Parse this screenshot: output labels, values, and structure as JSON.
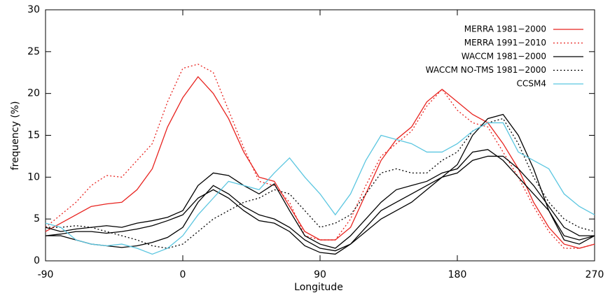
{
  "chart_data": {
    "type": "line",
    "x_label": "Longitude",
    "y_label": "frequency (%)",
    "xlim": [
      -90,
      270
    ],
    "xticks": [
      -90,
      0,
      90,
      180,
      270
    ],
    "ylim": [
      0,
      30
    ],
    "yticks": [
      0,
      5,
      10,
      15,
      20,
      25,
      30
    ],
    "legend": "top-right",
    "x": [
      -90,
      -80,
      -70,
      -60,
      -50,
      -40,
      -30,
      -20,
      -10,
      0,
      10,
      20,
      30,
      40,
      50,
      60,
      70,
      80,
      90,
      100,
      110,
      120,
      130,
      140,
      150,
      160,
      170,
      180,
      190,
      200,
      210,
      220,
      230,
      240,
      250,
      260,
      270
    ],
    "series": [
      {
        "name": "MERRA 1981−2000",
        "color": "#e8231f",
        "dash": "solid",
        "values": [
          3.5,
          4.5,
          5.5,
          6.5,
          6.8,
          7,
          8.5,
          11,
          16,
          19.5,
          22,
          20,
          17,
          13,
          10,
          9.5,
          6.5,
          3.5,
          2.5,
          2.5,
          4,
          8,
          12,
          14.5,
          16,
          19,
          20.5,
          19,
          17.5,
          16.5,
          14,
          11,
          7,
          4,
          2,
          1.5,
          2
        ]
      },
      {
        "name": "MERRA 1991−2010",
        "color": "#e8231f",
        "dash": "dotted",
        "values": [
          4,
          5.5,
          7,
          9,
          10.2,
          10,
          12,
          14,
          19,
          23,
          23.5,
          22.5,
          18,
          13.5,
          9.5,
          9,
          7,
          3,
          2.5,
          2.5,
          5,
          9,
          12.5,
          14,
          15.5,
          18.5,
          20.5,
          18,
          16.5,
          16,
          13,
          10,
          6.5,
          3.5,
          1.5,
          1.5,
          2
        ]
      },
      {
        "name": "WACCM 1981−2000",
        "color": "#000000",
        "dash": "solid",
        "values": [
          [
            4,
            3.5,
            3.8,
            4,
            4.2,
            4,
            4.5,
            4.8,
            5.2,
            6,
            9,
            10.5,
            10.2,
            9,
            8,
            9.2,
            6,
            3,
            2,
            1.5,
            3,
            5,
            7,
            8.5,
            9,
            9.5,
            10.5,
            11,
            13,
            13.3,
            12,
            10,
            8,
            6,
            3,
            2.5,
            3
          ],
          [
            3,
            3,
            2.5,
            2,
            1.8,
            1.6,
            1.8,
            2.2,
            2.8,
            4,
            7,
            9,
            8,
            6.5,
            5.5,
            5,
            4,
            2.5,
            1.5,
            1.2,
            2,
            4,
            6,
            7,
            8,
            9,
            10,
            11.5,
            15,
            17,
            17.5,
            15,
            11,
            6,
            2.5,
            2,
            3
          ],
          [
            3,
            3.2,
            3.5,
            3.5,
            3.3,
            3.5,
            3.8,
            4.2,
            4.8,
            5.5,
            7.5,
            8.5,
            7.5,
            6,
            4.8,
            4.5,
            3.5,
            1.8,
            1,
            0.8,
            2,
            3.5,
            5,
            6,
            7,
            8.5,
            10,
            10.5,
            12,
            12.5,
            12.5,
            11,
            9,
            6.5,
            4,
            3,
            3
          ]
        ]
      },
      {
        "name": "WACCM NO-TMS 1981−2000",
        "color": "#000000",
        "dash": "dotted",
        "values": [
          4,
          4,
          4.2,
          4,
          3.5,
          3,
          2.5,
          1.8,
          1.5,
          2,
          3.5,
          5,
          6,
          7,
          7.5,
          8.5,
          8,
          6,
          4,
          4.5,
          5.5,
          8,
          10.5,
          11,
          10.5,
          10.5,
          12,
          13,
          15.5,
          16.5,
          17,
          14,
          10,
          7,
          5,
          4,
          3.5
        ]
      },
      {
        "name": "CCSM4",
        "color": "#5bc6e0",
        "dash": "solid",
        "values": [
          4.5,
          4,
          2.5,
          2,
          1.8,
          2,
          1.5,
          0.8,
          1.5,
          3,
          5.5,
          7.5,
          9.5,
          9,
          8.5,
          10.5,
          12.3,
          10,
          8,
          5.5,
          8,
          12,
          15,
          14.5,
          14,
          13,
          13,
          14,
          15.5,
          16.5,
          16.5,
          13,
          12,
          11,
          8,
          6.5,
          5.5
        ]
      }
    ]
  }
}
